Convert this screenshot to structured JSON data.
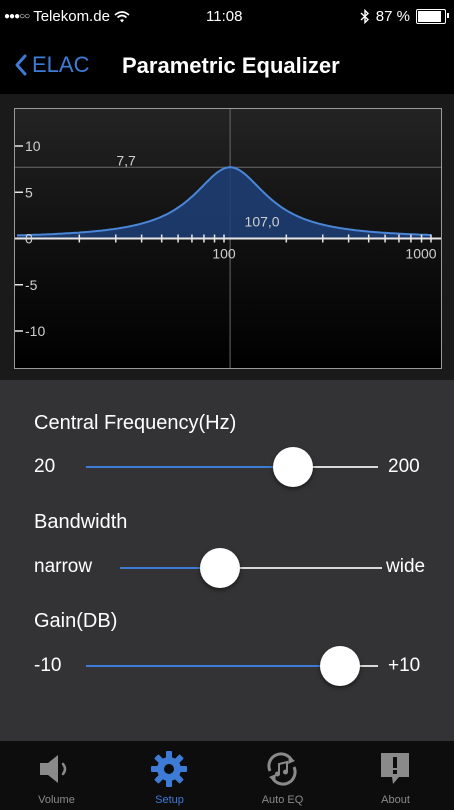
{
  "status_bar": {
    "carrier": "Telekom.de",
    "time": "11:08",
    "battery": "87 %",
    "battery_level": 0.87
  },
  "nav": {
    "back_label": "ELAC",
    "title": "Parametric Equalizer"
  },
  "graph": {
    "y_ticks": [
      "10",
      "5",
      "0",
      "-5",
      "-10"
    ],
    "x_ticks": [
      "100",
      "1000"
    ],
    "peak_gain_label": "7,7",
    "peak_freq_label": "107,0",
    "peak_gain": 7.7,
    "peak_freq": 107.0,
    "ylim": [
      -14,
      14
    ],
    "xlim_log": [
      10,
      1000
    ],
    "colors": {
      "curve": "#4a86d8",
      "fill": "#1e3f78"
    }
  },
  "controls": {
    "frequency": {
      "label": "Central Frequency(Hz)",
      "min_label": "20",
      "max_label": "200",
      "value_fraction": 0.71
    },
    "bandwidth": {
      "label": "Bandwidth",
      "min_label": "narrow",
      "max_label": "wide",
      "value_fraction": 0.38
    },
    "gain": {
      "label": "Gain(DB)",
      "min_label": "-10",
      "max_label": "+10",
      "value_fraction": 0.87
    }
  },
  "tabs": [
    {
      "label": "Volume",
      "icon": "speaker-icon",
      "active": false
    },
    {
      "label": "Setup",
      "icon": "gear-icon",
      "active": true
    },
    {
      "label": "Auto EQ",
      "icon": "music-refresh-icon",
      "active": false
    },
    {
      "label": "About",
      "icon": "exclamation-bubble-icon",
      "active": false
    }
  ],
  "accent_color": "#3d7bd6"
}
